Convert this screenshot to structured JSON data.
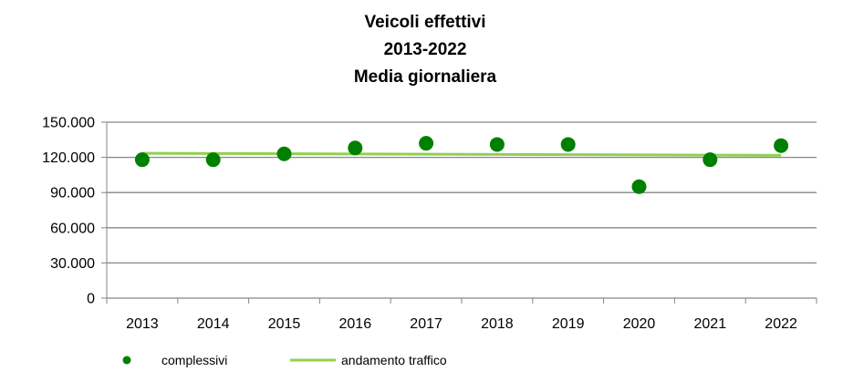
{
  "chart_data": {
    "type": "scatter",
    "title_lines": [
      "Veicoli effettivi",
      "2013-2022",
      "Media giornaliera"
    ],
    "categories": [
      "2013",
      "2014",
      "2015",
      "2016",
      "2017",
      "2018",
      "2019",
      "2020",
      "2021",
      "2022"
    ],
    "y_ticks": [
      "0",
      "30.000",
      "60.000",
      "90.000",
      "120.000",
      "150.000"
    ],
    "ylim": [
      0,
      150000
    ],
    "grid": true,
    "legend_position": "bottom-left",
    "series": [
      {
        "name": "complessivi",
        "kind": "markers",
        "color": "#008000",
        "values": [
          118000,
          118000,
          123000,
          128000,
          132000,
          131000,
          131000,
          95000,
          118000,
          130000
        ]
      },
      {
        "name": "andamento traffico",
        "kind": "trendline",
        "color": "#92d050",
        "values": [
          123500,
          123300,
          123100,
          122900,
          122700,
          122500,
          122300,
          122100,
          121900,
          121700
        ]
      }
    ]
  }
}
